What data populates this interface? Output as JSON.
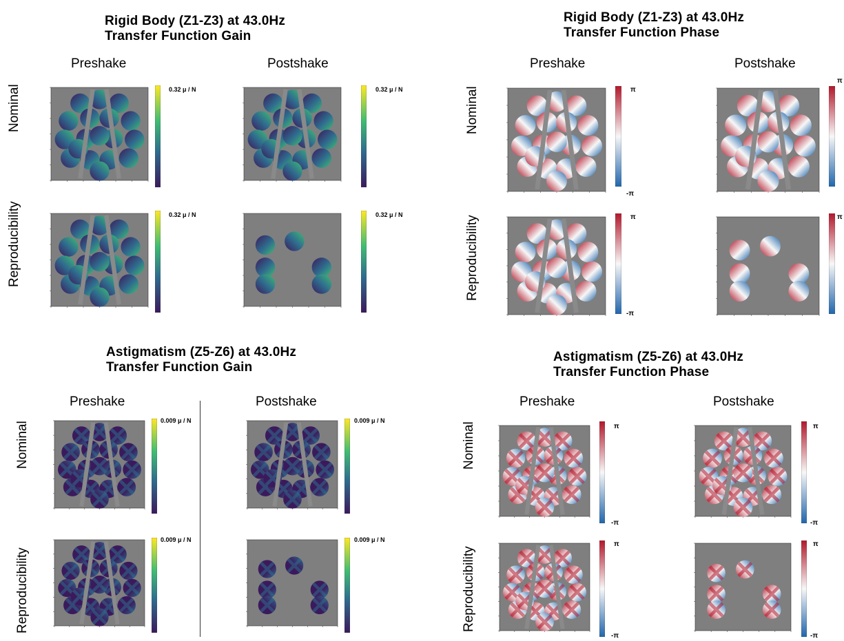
{
  "panels": {
    "rb_gain": {
      "title_line1": "Rigid Body (Z1-Z3) at 43.0Hz",
      "title_line2": "Transfer Function Gain",
      "col_preshake": "Preshake",
      "col_postshake": "Postshake",
      "row_nominal": "Nominal",
      "row_repro": "Reproducibility",
      "scale": [
        "0.32 μ / N",
        "0.32 μ / N",
        "0.32 μ / N",
        "0.32 μ / N"
      ]
    },
    "rb_phase": {
      "title_line1": "Rigid Body (Z1-Z3) at 43.0Hz",
      "title_line2": "Transfer Function Phase",
      "col_preshake": "Preshake",
      "col_postshake": "Postshake",
      "row_nominal": "Nominal",
      "row_repro": "Reproducibility",
      "pi_top": "π",
      "pi_bottom": "-π"
    },
    "as_gain": {
      "title_line1": "Astigmatism (Z5-Z6) at 43.0Hz",
      "title_line2": "Transfer Function Gain",
      "col_preshake": "Preshake",
      "col_postshake": "Postshake",
      "row_nominal": "Nominal",
      "row_repro": "Reproducibility",
      "scale": [
        "0.009 μ / N",
        "0.009 μ / N",
        "0.009 μ / N",
        "0.009 μ / N"
      ]
    },
    "as_phase": {
      "title_line1": "Astigmatism (Z5-Z6) at 43.0Hz",
      "title_line2": "Transfer Function Phase",
      "col_preshake": "Preshake",
      "col_postshake": "Postshake",
      "row_nominal": "Nominal",
      "row_repro": "Reproducibility",
      "pi_top": "π",
      "pi_bottom": "-π"
    }
  },
  "colors": {
    "plot_bg": "#7f7f7f",
    "viridis_dark": "#3b1a5c",
    "viridis_mid": "#2f6c8e",
    "viridis_light": "#3fbc73",
    "viridis_top": "#fde725",
    "rdbu_red": "#b2182b",
    "rdbu_blue": "#2166ac",
    "rdbu_white": "#f7f7f7"
  }
}
